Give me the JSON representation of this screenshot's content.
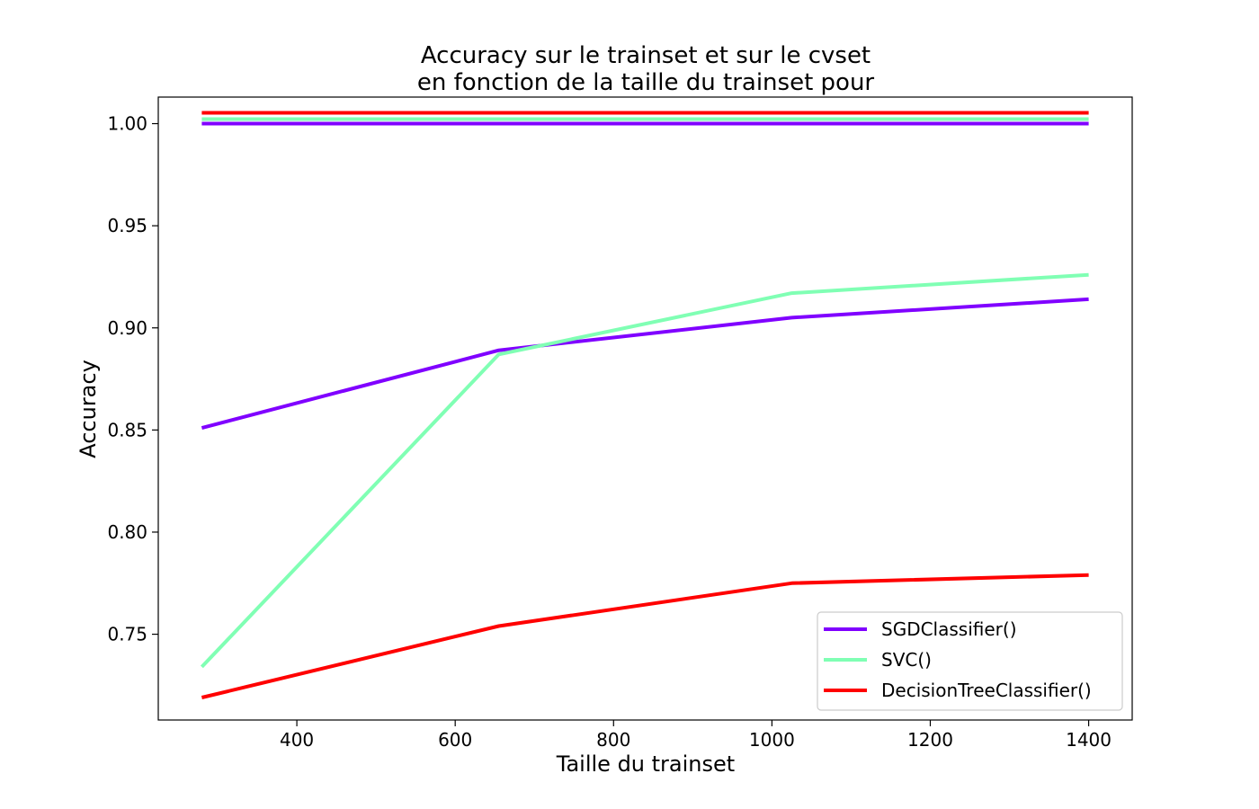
{
  "chart_data": {
    "type": "line",
    "title_lines": [
      "Accuracy sur le trainset et sur le cvset",
      "en fonction de la taille du trainset pour"
    ],
    "xlabel": "Taille du trainset",
    "ylabel": "Accuracy",
    "xlim": [
      225,
      1455
    ],
    "ylim": [
      0.708,
      1.013
    ],
    "xticks": [
      400,
      600,
      800,
      1000,
      1200,
      1400
    ],
    "yticks": [
      0.75,
      0.8,
      0.85,
      0.9,
      0.95,
      1.0
    ],
    "ytick_labels": [
      "0.75",
      "0.80",
      "0.85",
      "0.90",
      "0.95",
      "1.00"
    ],
    "grid": false,
    "legend_position": "lower right",
    "x": [
      280,
      655,
      1025,
      1400
    ],
    "series": [
      {
        "name": "SGDClassifier()",
        "color": "#8000ff",
        "role": "cv",
        "values": [
          0.851,
          0.889,
          0.905,
          0.914
        ]
      },
      {
        "name": "SVC()",
        "color": "#80ffb4",
        "role": "cv",
        "values": [
          0.734,
          0.887,
          0.917,
          0.926
        ]
      },
      {
        "name": "DecisionTreeClassifier()",
        "color": "#ff0000",
        "role": "cv",
        "values": [
          0.719,
          0.754,
          0.775,
          0.779
        ]
      },
      {
        "color": "#8000ff",
        "role": "train",
        "values": [
          1.0,
          1.0,
          1.0,
          1.0
        ]
      },
      {
        "color": "#80ffb4",
        "role": "train",
        "values": [
          1.0,
          1.0,
          1.0,
          1.0
        ]
      },
      {
        "color": "#ff0000",
        "role": "train",
        "values": [
          1.0,
          1.0,
          1.0,
          1.0
        ]
      }
    ]
  }
}
